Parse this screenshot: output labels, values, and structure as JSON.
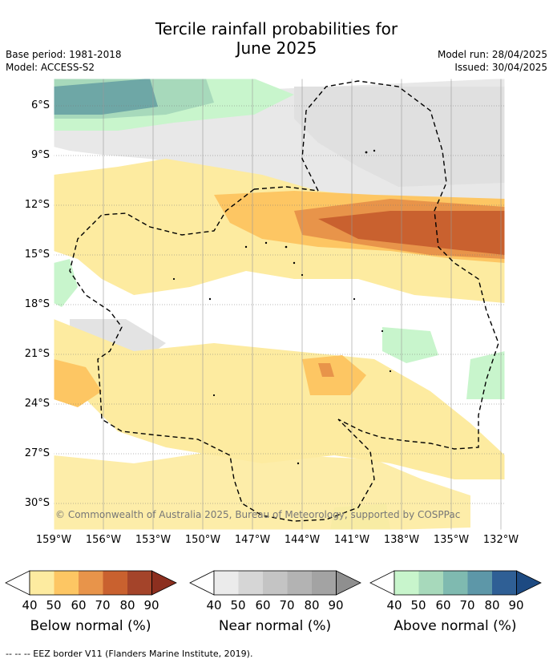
{
  "header": {
    "title_line1": "Tercile rainfall probabilities for",
    "title_line2": "June 2025",
    "base_period": "Base period: 1981-2018",
    "model": "Model: ACCESS-S2",
    "model_run": "Model run: 28/04/2025",
    "issued": "Issued: 30/04/2025"
  },
  "map": {
    "lat_ticks": [
      "6°S",
      "9°S",
      "12°S",
      "15°S",
      "18°S",
      "21°S",
      "24°S",
      "27°S",
      "30°S"
    ],
    "lon_ticks": [
      "159°W",
      "156°W",
      "153°W",
      "150°W",
      "147°W",
      "144°W",
      "141°W",
      "138°W",
      "135°W",
      "132°W"
    ],
    "copyright": "© Commonwealth of Australia 2025, Bureau of Meteorology, supported by COSPPac"
  },
  "legends": [
    {
      "title": "Below normal (%)",
      "labels": [
        "40",
        "50",
        "60",
        "70",
        "80",
        "90"
      ],
      "colors": [
        "#fdeba0",
        "#fdc663",
        "#e8944a",
        "#c9612f",
        "#a4442a",
        "#8c2f1f"
      ]
    },
    {
      "title": "Near normal (%)",
      "labels": [
        "40",
        "50",
        "60",
        "70",
        "80",
        "90"
      ],
      "colors": [
        "#ebebeb",
        "#d6d6d6",
        "#c4c4c4",
        "#b3b3b3",
        "#a3a3a3",
        "#8f8f8f"
      ]
    },
    {
      "title": "Above normal (%)",
      "labels": [
        "40",
        "50",
        "60",
        "70",
        "80",
        "90"
      ],
      "colors": [
        "#c8f5cc",
        "#a7d9bb",
        "#7fbab0",
        "#5d97a8",
        "#2f5f95",
        "#1d4a82"
      ]
    }
  ],
  "footer": "--  --  -- EEZ border V11 (Flanders Marine Institute, 2019)."
}
